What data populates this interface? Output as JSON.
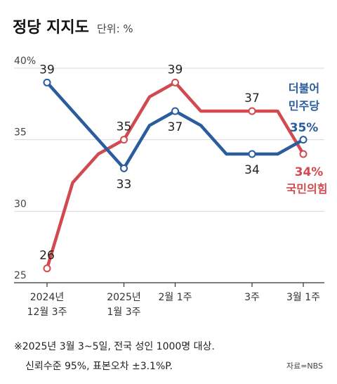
{
  "title": "정당 지지도",
  "unit_label": "단위: %",
  "chart_data": {
    "type": "line",
    "x": [
      "2024년 12월 3주",
      "",
      "",
      "2025년 1월 3주",
      "",
      "2월 1주",
      "",
      "",
      "3주",
      "",
      "3월 1주"
    ],
    "x_tick_labels": [
      {
        "index": 0,
        "lines": [
          "2024년",
          "12월 3주"
        ]
      },
      {
        "index": 3,
        "lines": [
          "2025년",
          "1월 3주"
        ]
      },
      {
        "index": 5,
        "lines": [
          "2월 1주"
        ]
      },
      {
        "index": 8,
        "lines": [
          "3주"
        ]
      },
      {
        "index": 10,
        "lines": [
          "3월 1주"
        ]
      }
    ],
    "y_ticks": [
      "40%",
      "35",
      "30",
      "25"
    ],
    "y_tick_values": [
      40,
      35,
      30,
      25
    ],
    "ylim": [
      25,
      40
    ],
    "grid": true,
    "series": [
      {
        "name_lines": [
          "더불어",
          "민주당"
        ],
        "value_text": "35%",
        "color": "#2b5c9e",
        "values": [
          39,
          null,
          null,
          33,
          36,
          37,
          36,
          34,
          34,
          34,
          35
        ],
        "labels": [
          {
            "index": 0,
            "text": "39",
            "pos": "above"
          },
          {
            "index": 3,
            "text": "33",
            "pos": "below"
          },
          {
            "index": 5,
            "text": "37",
            "pos": "below"
          },
          {
            "index": 8,
            "text": "34",
            "pos": "below"
          }
        ]
      },
      {
        "name_lines": [
          "국민의힘"
        ],
        "value_text": "34%",
        "color": "#d04a50",
        "values": [
          26,
          32,
          34,
          35,
          38,
          39,
          37,
          37,
          37,
          37,
          34
        ],
        "labels": [
          {
            "index": 0,
            "text": "26",
            "pos": "above"
          },
          {
            "index": 3,
            "text": "35",
            "pos": "above"
          },
          {
            "index": 5,
            "text": "39",
            "pos": "above"
          },
          {
            "index": 8,
            "text": "37",
            "pos": "above"
          }
        ]
      }
    ]
  },
  "notes": [
    "※2025년 3월 3~5일, 전국 성인 1000명 대상.",
    "신뢰수준 95%, 표본오차 ±3.1%P."
  ],
  "source": "자료=NBS"
}
